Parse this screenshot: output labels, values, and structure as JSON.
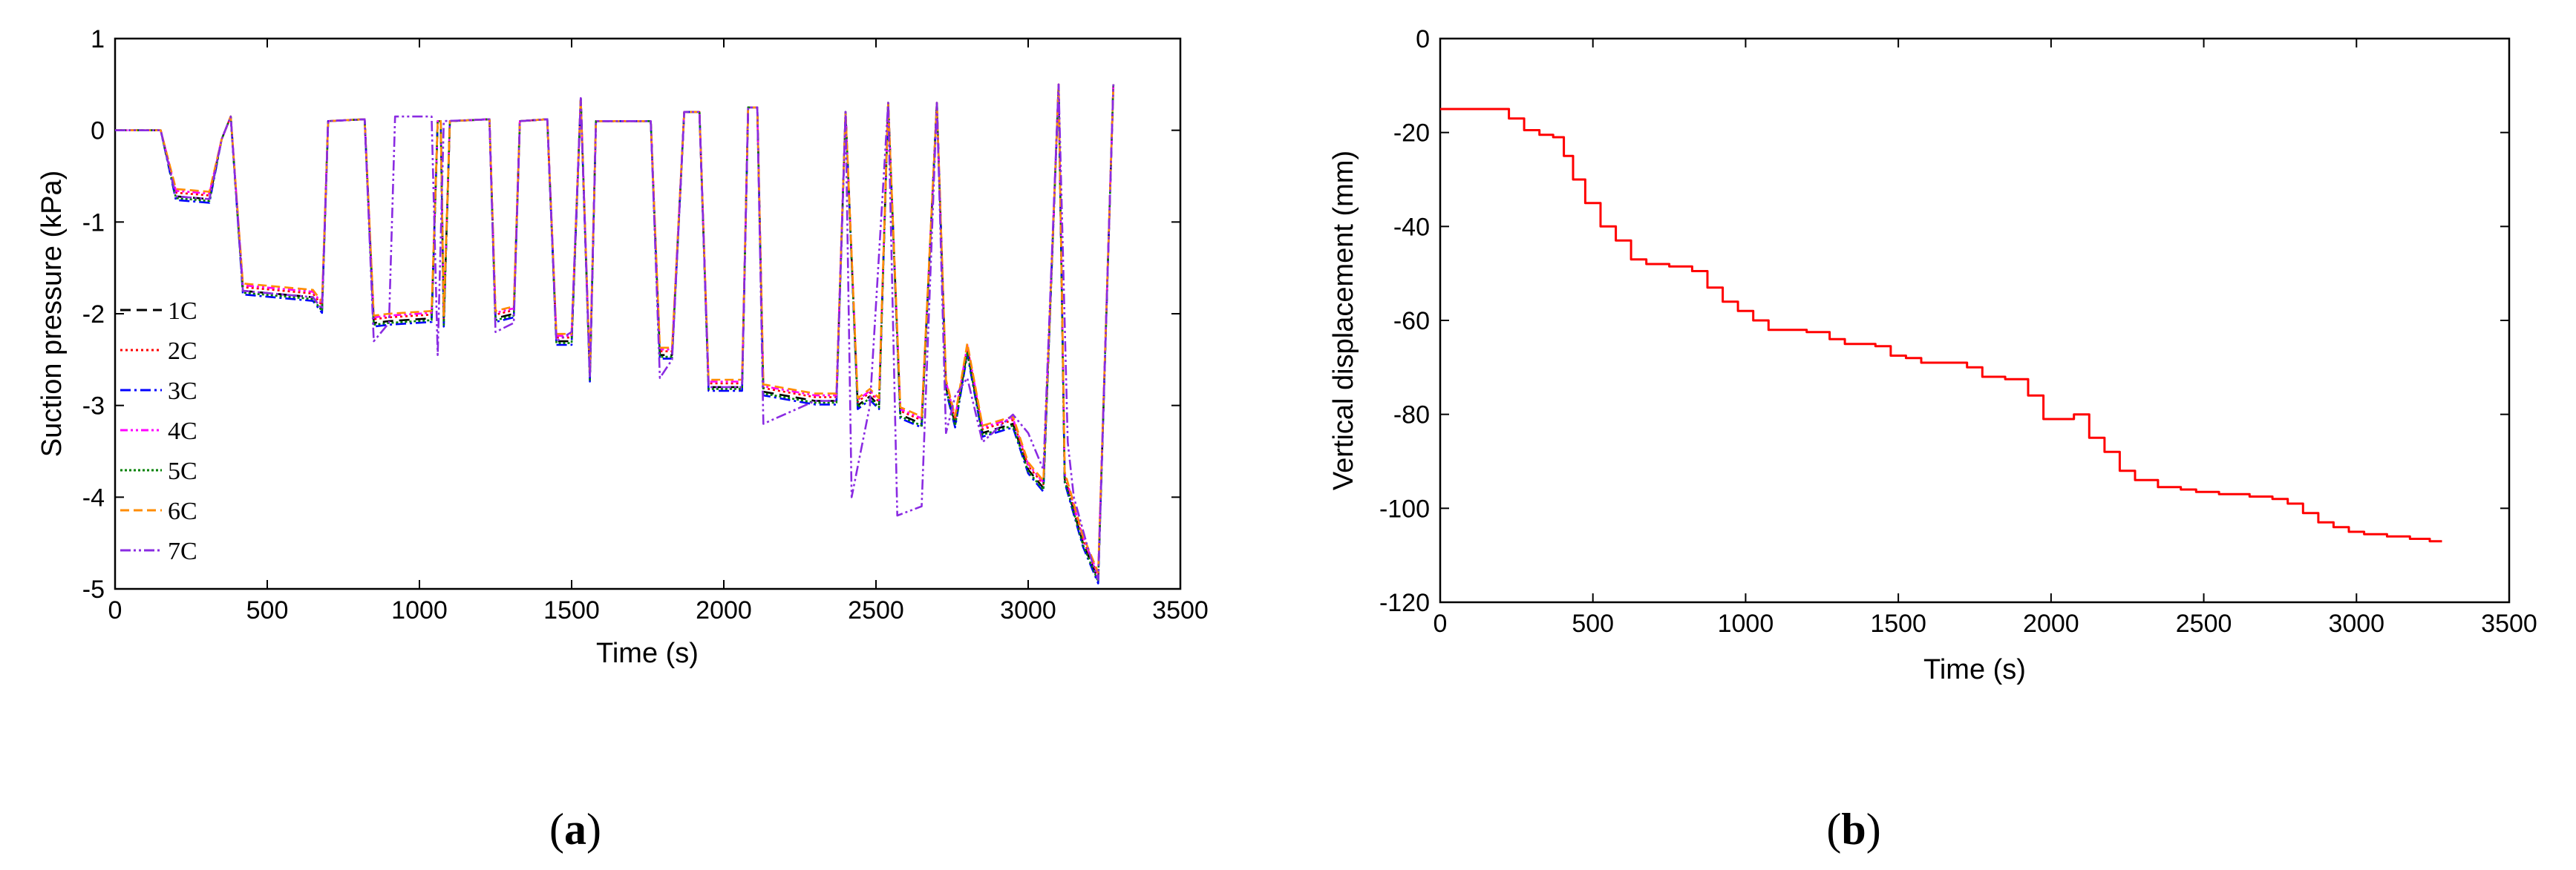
{
  "captions": {
    "a_open": "(",
    "a_letter": "a",
    "a_close": ")",
    "b_open": "(",
    "b_letter": "b",
    "b_close": ")"
  },
  "chart_data": [
    {
      "id": "a",
      "type": "line",
      "title": "",
      "xlabel": "Time (s)",
      "ylabel": "Suction pressure (kPa)",
      "xlim": [
        0,
        3500
      ],
      "ylim": [
        -5,
        1
      ],
      "xticks": [
        0,
        500,
        1000,
        1500,
        2000,
        2500,
        3000,
        3500
      ],
      "yticks": [
        1,
        0,
        -1,
        -2,
        -3,
        -4,
        -5
      ],
      "legend_position": "left",
      "base_profile": [
        [
          0,
          0
        ],
        [
          150,
          0
        ],
        [
          200,
          -0.72
        ],
        [
          310,
          -0.75
        ],
        [
          350,
          -0.1
        ],
        [
          380,
          0.15
        ],
        [
          420,
          -1.75
        ],
        [
          650,
          -1.82
        ],
        [
          680,
          -1.95
        ],
        [
          700,
          0.1
        ],
        [
          820,
          0.12
        ],
        [
          850,
          -2.1
        ],
        [
          900,
          -2.08
        ],
        [
          1040,
          -2.05
        ],
        [
          1060,
          0.1
        ],
        [
          1070,
          0.1
        ],
        [
          1080,
          -2.1
        ],
        [
          1100,
          0.1
        ],
        [
          1230,
          0.12
        ],
        [
          1250,
          -2.05
        ],
        [
          1310,
          -2.0
        ],
        [
          1330,
          0.1
        ],
        [
          1420,
          0.12
        ],
        [
          1450,
          -2.3
        ],
        [
          1500,
          -2.3
        ],
        [
          1530,
          0.35
        ],
        [
          1560,
          -2.7
        ],
        [
          1580,
          0.1
        ],
        [
          1760,
          0.1
        ],
        [
          1790,
          -2.45
        ],
        [
          1830,
          -2.45
        ],
        [
          1870,
          0.2
        ],
        [
          1920,
          0.2
        ],
        [
          1950,
          -2.8
        ],
        [
          2060,
          -2.8
        ],
        [
          2080,
          0.25
        ],
        [
          2110,
          0.25
        ],
        [
          2130,
          -2.85
        ],
        [
          2300,
          -2.95
        ],
        [
          2370,
          -2.95
        ],
        [
          2400,
          0.2
        ],
        [
          2440,
          -3.0
        ],
        [
          2480,
          -2.9
        ],
        [
          2510,
          -3.0
        ],
        [
          2540,
          0.3
        ],
        [
          2580,
          -3.1
        ],
        [
          2650,
          -3.2
        ],
        [
          2700,
          0.3
        ],
        [
          2730,
          -2.8
        ],
        [
          2760,
          -3.2
        ],
        [
          2800,
          -2.4
        ],
        [
          2850,
          -3.3
        ],
        [
          2950,
          -3.2
        ],
        [
          3000,
          -3.7
        ],
        [
          3050,
          -3.9
        ],
        [
          3100,
          0.5
        ],
        [
          3120,
          -3.8
        ],
        [
          3180,
          -4.5
        ],
        [
          3230,
          -4.9
        ],
        [
          3280,
          0.5
        ]
      ],
      "series": [
        {
          "name": "1C",
          "color": "#000000",
          "dash": "14,8",
          "offset": 0.0
        },
        {
          "name": "2C",
          "color": "#ff0000",
          "dash": "3,4",
          "offset": 0.04
        },
        {
          "name": "3C",
          "color": "#0000ff",
          "dash": "14,5,3,5",
          "offset": -0.04
        },
        {
          "name": "4C",
          "color": "#ff00ff",
          "dash": "10,4,3,4,3,4",
          "offset": 0.06
        },
        {
          "name": "5C",
          "color": "#008000",
          "dash": "3,3",
          "offset": -0.02
        },
        {
          "name": "6C",
          "color": "#ff8c00",
          "dash": "12,6",
          "offset": 0.08
        },
        {
          "name": "7C",
          "color": "#8a2be2",
          "dash": "14,4,3,4,3,4",
          "offset": 0.0,
          "profile": [
            [
              0,
              0
            ],
            [
              150,
              0
            ],
            [
              200,
              -0.72
            ],
            [
              310,
              -0.75
            ],
            [
              350,
              -0.1
            ],
            [
              380,
              0.15
            ],
            [
              420,
              -1.75
            ],
            [
              650,
              -1.82
            ],
            [
              680,
              -1.95
            ],
            [
              700,
              0.1
            ],
            [
              820,
              0.12
            ],
            [
              850,
              -2.3
            ],
            [
              900,
              -2.1
            ],
            [
              920,
              0.15
            ],
            [
              1040,
              0.15
            ],
            [
              1060,
              -2.45
            ],
            [
              1080,
              0.1
            ],
            [
              1230,
              0.12
            ],
            [
              1250,
              -2.2
            ],
            [
              1310,
              -2.1
            ],
            [
              1330,
              0.1
            ],
            [
              1420,
              0.12
            ],
            [
              1450,
              -2.3
            ],
            [
              1500,
              -2.2
            ],
            [
              1530,
              0.35
            ],
            [
              1560,
              -2.7
            ],
            [
              1580,
              0.1
            ],
            [
              1760,
              0.1
            ],
            [
              1790,
              -2.7
            ],
            [
              1830,
              -2.5
            ],
            [
              1870,
              0.2
            ],
            [
              1920,
              0.2
            ],
            [
              1950,
              -2.8
            ],
            [
              2060,
              -2.8
            ],
            [
              2080,
              0.25
            ],
            [
              2110,
              0.25
            ],
            [
              2130,
              -3.2
            ],
            [
              2300,
              -2.95
            ],
            [
              2370,
              -2.95
            ],
            [
              2400,
              0.2
            ],
            [
              2420,
              -4.0
            ],
            [
              2480,
              -3.0
            ],
            [
              2540,
              0.3
            ],
            [
              2570,
              -4.2
            ],
            [
              2650,
              -4.1
            ],
            [
              2700,
              0.3
            ],
            [
              2730,
              -3.3
            ],
            [
              2760,
              -2.9
            ],
            [
              2800,
              -2.7
            ],
            [
              2850,
              -3.4
            ],
            [
              2950,
              -3.1
            ],
            [
              3000,
              -3.3
            ],
            [
              3050,
              -3.7
            ],
            [
              3100,
              0.5
            ],
            [
              3130,
              -3.4
            ],
            [
              3150,
              -4.0
            ],
            [
              3200,
              -4.6
            ],
            [
              3230,
              -4.9
            ],
            [
              3280,
              0.5
            ]
          ]
        }
      ]
    },
    {
      "id": "b",
      "type": "line",
      "title": "",
      "xlabel": "Time (s)",
      "ylabel": "Vertical displacement (mm)",
      "xlim": [
        0,
        3500
      ],
      "ylim": [
        -120,
        0
      ],
      "xticks": [
        0,
        500,
        1000,
        1500,
        2000,
        2500,
        3000,
        3500
      ],
      "yticks": [
        0,
        -20,
        -40,
        -60,
        -80,
        -100,
        -120
      ],
      "series": [
        {
          "name": "displacement",
          "color": "#ff0000",
          "x": [
            0,
            100,
            200,
            250,
            300,
            350,
            390,
            420,
            450,
            500,
            550,
            600,
            650,
            700,
            800,
            850,
            900,
            950,
            1000,
            1050,
            1100,
            1150,
            1250,
            1300,
            1350,
            1400,
            1450,
            1500,
            1550,
            1600,
            1700,
            1750,
            1800,
            1900,
            1950,
            2000,
            2050,
            2100,
            2150,
            2200,
            2250,
            2300,
            2400,
            2450,
            2500,
            2600,
            2700,
            2750,
            2800,
            2850,
            2900,
            2950,
            3000,
            3050,
            3150,
            3200,
            3280
          ],
          "values": [
            -15,
            -15,
            -15,
            -17,
            -19.5,
            -20.5,
            -21,
            -25,
            -30,
            -35,
            -40,
            -43,
            -47,
            -48,
            -48.5,
            -49.5,
            -53,
            -56,
            -58,
            -60,
            -62,
            -62,
            -62.5,
            -64,
            -65,
            -65,
            -65.5,
            -67.5,
            -68,
            -69,
            -69,
            -70,
            -72,
            -72.5,
            -76,
            -81,
            -81,
            -80,
            -85,
            -88,
            -92,
            -94,
            -95.5,
            -96,
            -96.5,
            -97,
            -97.5,
            -98,
            -99,
            -101,
            -103,
            -104,
            -105,
            -105.5,
            -106,
            -106.5,
            -107
          ]
        }
      ]
    }
  ]
}
